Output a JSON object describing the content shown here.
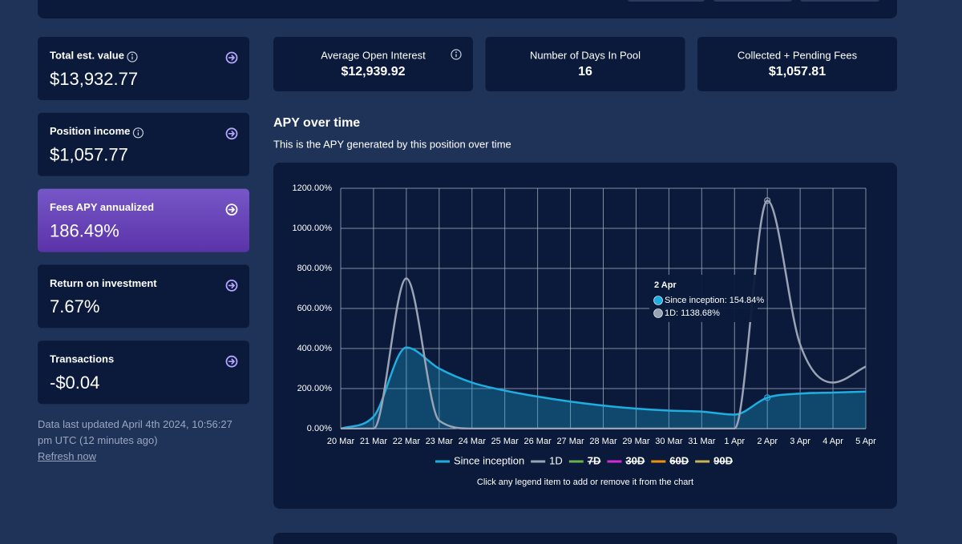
{
  "left_cards": [
    {
      "label": "Total est. value",
      "value": "$13,932.77",
      "info_icon": true,
      "highlighted": false
    },
    {
      "label": "Position income",
      "value": "$1,057.77",
      "info_icon": true,
      "highlighted": false
    },
    {
      "label": "Fees APY annualized",
      "value": "186.49%",
      "info_icon": false,
      "highlighted": true
    },
    {
      "label": "Return on investment",
      "value": "7.67%",
      "info_icon": false,
      "highlighted": false
    },
    {
      "label": "Transactions",
      "value": "-$0.04",
      "info_icon": false,
      "highlighted": false
    }
  ],
  "footer": {
    "updated": "Data last updated April 4th 2024, 10:56:27 pm UTC (12 minutes ago)",
    "refresh": "Refresh now"
  },
  "stats": [
    {
      "label": "Average Open Interest",
      "value": "$12,939.92",
      "info_icon": true
    },
    {
      "label": "Number of Days In Pool",
      "value": "16",
      "info_icon": false
    },
    {
      "label": "Collected + Pending Fees",
      "value": "$1,057.81",
      "info_icon": false
    }
  ],
  "section": {
    "title": "APY over time",
    "subtitle": "This is the APY generated by this position over time"
  },
  "chart_data": {
    "type": "area-line",
    "categories": [
      "20 Mar",
      "21 Mar",
      "22 Mar",
      "23 Mar",
      "24 Mar",
      "25 Mar",
      "26 Mar",
      "27 Mar",
      "28 Mar",
      "29 Mar",
      "30 Mar",
      "31 Mar",
      "1 Apr",
      "2 Apr",
      "3 Apr",
      "4 Apr",
      "5 Apr"
    ],
    "ylim": [
      0,
      1200
    ],
    "yticks": [
      {
        "value": 0,
        "label": "0.00%"
      },
      {
        "value": 200,
        "label": "200.00%"
      },
      {
        "value": 400,
        "label": "400.00%"
      },
      {
        "value": 600,
        "label": "600.00%"
      },
      {
        "value": 800,
        "label": "800.00%"
      },
      {
        "value": 1000,
        "label": "1000.00%"
      },
      {
        "value": 1200,
        "label": "1200.00%"
      }
    ],
    "grid": true,
    "series": [
      {
        "name": "Since inception",
        "color": "#1eaee0",
        "fill": true,
        "visible": true,
        "values": [
          0,
          60,
          405,
          300,
          230,
          190,
          160,
          135,
          115,
          100,
          90,
          85,
          70,
          154.84,
          175,
          180,
          185
        ]
      },
      {
        "name": "1D",
        "color": "#9aa3b5",
        "fill": false,
        "visible": true,
        "values": [
          0,
          0,
          750,
          40,
          0,
          0,
          0,
          0,
          0,
          0,
          0,
          0,
          0,
          1138.68,
          420,
          230,
          310
        ]
      },
      {
        "name": "7D",
        "color": "#6ab04c",
        "visible": false
      },
      {
        "name": "30D",
        "color": "#d62ad6",
        "visible": false
      },
      {
        "name": "60D",
        "color": "#f0900c",
        "visible": false
      },
      {
        "name": "90D",
        "color": "#c9b458",
        "visible": false
      }
    ],
    "legend_note": "Click any legend item to add or remove it from the chart",
    "tooltip": {
      "index": 13,
      "title": "2 Apr",
      "items": [
        "Since inception: 154.84%",
        "1D: 1138.68%"
      ]
    }
  }
}
